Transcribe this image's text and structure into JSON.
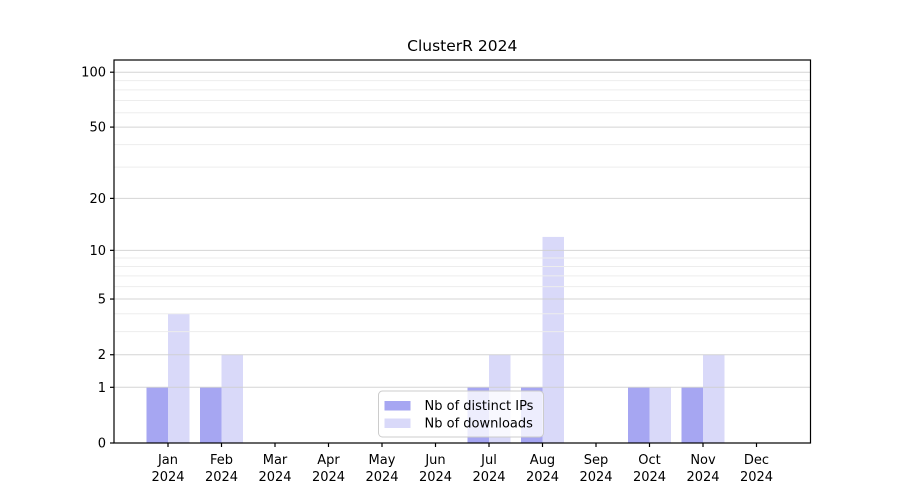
{
  "chart_data": {
    "type": "bar",
    "title": "ClusterR 2024",
    "categories": [
      {
        "line1": "Jan",
        "line2": "2024"
      },
      {
        "line1": "Feb",
        "line2": "2024"
      },
      {
        "line1": "Mar",
        "line2": "2024"
      },
      {
        "line1": "Apr",
        "line2": "2024"
      },
      {
        "line1": "May",
        "line2": "2024"
      },
      {
        "line1": "Jun",
        "line2": "2024"
      },
      {
        "line1": "Jul",
        "line2": "2024"
      },
      {
        "line1": "Aug",
        "line2": "2024"
      },
      {
        "line1": "Sep",
        "line2": "2024"
      },
      {
        "line1": "Oct",
        "line2": "2024"
      },
      {
        "line1": "Nov",
        "line2": "2024"
      },
      {
        "line1": "Dec",
        "line2": "2024"
      }
    ],
    "series": [
      {
        "name": "Nb of distinct IPs",
        "color": "#a6a6f2",
        "values": [
          1,
          1,
          0,
          0,
          0,
          0,
          1,
          1,
          0,
          1,
          1,
          0
        ]
      },
      {
        "name": "Nb of downloads",
        "color": "#d9d9f9",
        "values": [
          4,
          2,
          0,
          0,
          0,
          0,
          2,
          12,
          0,
          1,
          2,
          0
        ]
      }
    ],
    "y_axis": {
      "scale": "log10(1+value)",
      "major_ticks": [
        0,
        1,
        2,
        5,
        10,
        20,
        50,
        100
      ],
      "minor_gridlines": [
        3,
        4,
        6,
        7,
        8,
        9,
        30,
        40,
        60,
        70,
        80,
        90
      ],
      "range": [
        0,
        120
      ]
    },
    "legend": {
      "position": "bottom-center",
      "entries": [
        {
          "label": "Nb of distinct IPs",
          "color": "#a6a6f2"
        },
        {
          "label": "Nb of downloads",
          "color": "#d9d9f9"
        }
      ]
    },
    "grid": true,
    "colors": {
      "background": "#ffffff",
      "spine": "#000000",
      "major_grid": "#d0d0d0",
      "minor_grid": "#ededed",
      "text": "#000000",
      "legend_border": "#cccccc",
      "legend_bg": "rgba(255,255,255,0.8)"
    }
  }
}
